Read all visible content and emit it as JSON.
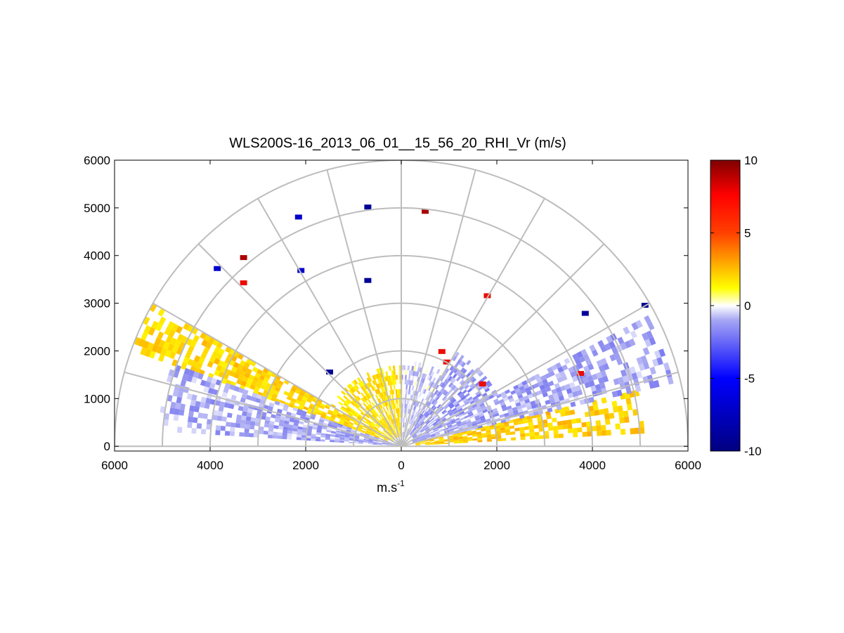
{
  "chart_data": {
    "type": "heatmap",
    "subtype": "polar-rhi",
    "title": "WLS200S-16_2013_06_01__15_56_20_RHI_Vr (m/s)",
    "xlabel": "m.s",
    "xlabel_superscript": "-1",
    "x_ticks": [
      "6000",
      "4000",
      "2000",
      "0",
      "2000",
      "4000",
      "6000"
    ],
    "x_tick_values": [
      -6000,
      -4000,
      -2000,
      0,
      2000,
      4000,
      6000
    ],
    "y_ticks": [
      "6000",
      "5000",
      "4000",
      "3000",
      "2000",
      "1000",
      "0"
    ],
    "y_tick_values": [
      6000,
      5000,
      4000,
      3000,
      2000,
      1000,
      0
    ],
    "xlim": [
      -6000,
      6000
    ],
    "ylim": [
      -100,
      6000
    ],
    "range_rings": [
      1000,
      2000,
      3000,
      4000,
      5000,
      6000
    ],
    "spokes_deg": [
      0,
      15,
      30,
      45,
      60,
      75,
      90,
      105,
      120,
      135,
      150,
      165,
      180
    ],
    "colorbar": {
      "min": -10,
      "max": 10,
      "ticks": [
        "10",
        "5",
        "0",
        "-5",
        "-10"
      ],
      "tick_values": [
        10,
        5,
        0,
        -5,
        -10
      ]
    },
    "data_bands": [
      {
        "side": "right",
        "az_from": 3,
        "az_to": 13,
        "r_from": 300,
        "r_to": 5100,
        "vr_mean": 2.0
      },
      {
        "side": "right",
        "az_from": 13,
        "az_to": 28,
        "r_from": 250,
        "r_to": 5800,
        "vr_mean": -1.2
      },
      {
        "side": "right",
        "az_from": 28,
        "az_to": 60,
        "r_from": 300,
        "r_to": 2300,
        "vr_mean": -1.4
      },
      {
        "side": "right",
        "az_from": 60,
        "az_to": 90,
        "r_from": 100,
        "r_to": 1800,
        "vr_mean": -0.6
      },
      {
        "side": "left",
        "az_from": 90,
        "az_to": 150,
        "r_from": 200,
        "r_to": 1700,
        "vr_mean": 1.5
      },
      {
        "side": "left",
        "az_from": 150,
        "az_to": 160,
        "r_from": 300,
        "r_to": 6000,
        "vr_mean": 1.8
      },
      {
        "side": "left",
        "az_from": 160,
        "az_to": 176,
        "r_from": 100,
        "r_to": 5100,
        "vr_mean": -1.1
      }
    ],
    "isolated_gates": [
      {
        "x": 5100,
        "y": 2950,
        "vr": -9
      },
      {
        "x": 3850,
        "y": 2780,
        "vr": -9
      },
      {
        "x": 3750,
        "y": 1520,
        "vr": 7
      },
      {
        "x": 1800,
        "y": 3150,
        "vr": 7
      },
      {
        "x": 500,
        "y": 4920,
        "vr": 9
      },
      {
        "x": -700,
        "y": 5010,
        "vr": -9
      },
      {
        "x": -2150,
        "y": 4800,
        "vr": -7
      },
      {
        "x": -3300,
        "y": 3950,
        "vr": 9
      },
      {
        "x": -3850,
        "y": 3720,
        "vr": -7
      },
      {
        "x": -2100,
        "y": 3680,
        "vr": -7
      },
      {
        "x": -700,
        "y": 3470,
        "vr": -9
      },
      {
        "x": -3300,
        "y": 3420,
        "vr": 7
      },
      {
        "x": 850,
        "y": 1980,
        "vr": 7
      },
      {
        "x": 950,
        "y": 1760,
        "vr": 7
      },
      {
        "x": 1700,
        "y": 1300,
        "vr": 7
      },
      {
        "x": -1500,
        "y": 1550,
        "vr": -9
      }
    ]
  }
}
